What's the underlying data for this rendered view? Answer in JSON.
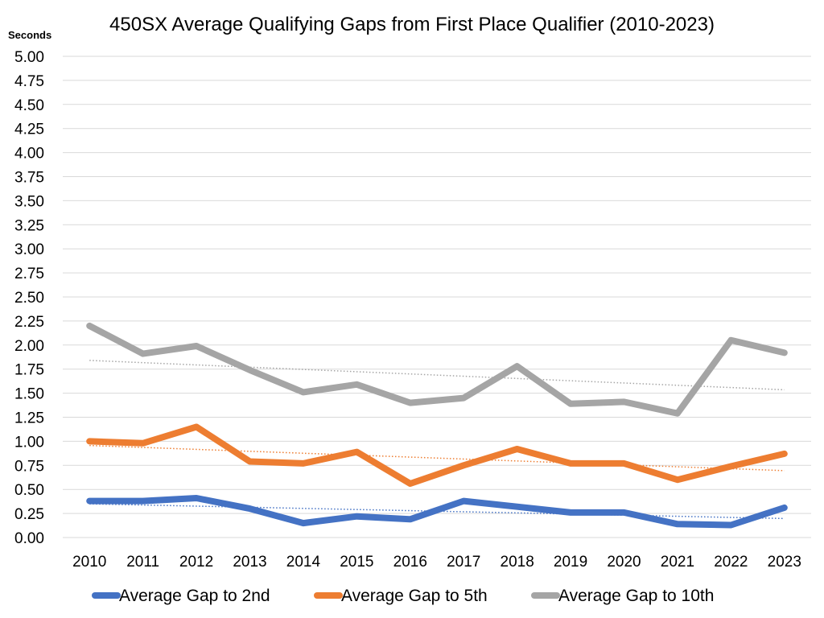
{
  "chart_data": {
    "type": "line",
    "title": "450SX Average Qualifying Gaps from First Place Qualifier (2010-2023)",
    "ylabel": "Seconds",
    "xlabel": "",
    "ylim": [
      0,
      5
    ],
    "y_ticks": [
      "0.00",
      "0.25",
      "0.50",
      "0.75",
      "1.00",
      "1.25",
      "1.50",
      "1.75",
      "2.00",
      "2.25",
      "2.50",
      "2.75",
      "3.00",
      "3.25",
      "3.50",
      "3.75",
      "4.00",
      "4.25",
      "4.50",
      "4.75",
      "5.00"
    ],
    "grid": true,
    "legend_position": "bottom",
    "trendlines": "linear, dotted",
    "x": [
      "2010",
      "2011",
      "2012",
      "2013",
      "2014",
      "2015",
      "2016",
      "2017",
      "2018",
      "2019",
      "2020",
      "2021",
      "2022",
      "2023"
    ],
    "series": [
      {
        "name": "Average Gap to 2nd",
        "color": "#4472C4",
        "values": [
          0.38,
          0.38,
          0.41,
          0.3,
          0.15,
          0.22,
          0.19,
          0.38,
          0.32,
          0.26,
          0.26,
          0.14,
          0.13,
          0.31
        ]
      },
      {
        "name": "Average Gap to 5th",
        "color": "#ED7D31",
        "values": [
          1.0,
          0.98,
          1.15,
          0.79,
          0.77,
          0.89,
          0.56,
          0.75,
          0.92,
          0.77,
          0.77,
          0.6,
          0.74,
          0.87
        ]
      },
      {
        "name": "Average Gap to 10th",
        "color": "#A5A5A5",
        "values": [
          2.2,
          1.91,
          1.99,
          1.74,
          1.51,
          1.59,
          1.4,
          1.45,
          1.78,
          1.39,
          1.41,
          1.29,
          2.05,
          1.92
        ]
      }
    ]
  }
}
